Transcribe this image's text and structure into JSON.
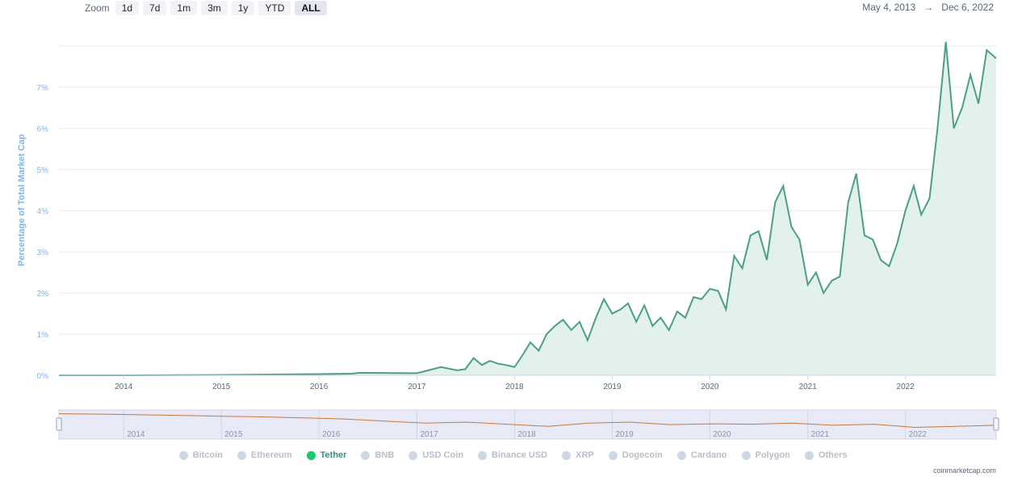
{
  "zoom": {
    "label": "Zoom",
    "buttons": [
      "1d",
      "7d",
      "1m",
      "3m",
      "1y",
      "YTD",
      "ALL"
    ],
    "active": "ALL"
  },
  "range": {
    "from": "May 4, 2013",
    "arrow": "→",
    "to": "Dec 6, 2022"
  },
  "credit": "coinmarketcap.com",
  "colors": {
    "line": "#4d9e86",
    "fill": "#e2f1eb",
    "axis_text": "#7cb5ec",
    "navigator_line": "#c5793d"
  },
  "legend": [
    {
      "label": "Bitcoin",
      "active": false
    },
    {
      "label": "Ethereum",
      "active": false
    },
    {
      "label": "Tether",
      "active": true
    },
    {
      "label": "BNB",
      "active": false
    },
    {
      "label": "USD Coin",
      "active": false
    },
    {
      "label": "Binance USD",
      "active": false
    },
    {
      "label": "XRP",
      "active": false
    },
    {
      "label": "Dogecoin",
      "active": false
    },
    {
      "label": "Cardano",
      "active": false
    },
    {
      "label": "Polygon",
      "active": false
    },
    {
      "label": "Others",
      "active": false
    }
  ],
  "chart_data": {
    "type": "area",
    "series": [
      {
        "name": "Tether",
        "points": [
          [
            "2013-05-04",
            0
          ],
          [
            "2014-01-01",
            0
          ],
          [
            "2015-01-01",
            0.01
          ],
          [
            "2016-01-01",
            0.03
          ],
          [
            "2016-05-01",
            0.04
          ],
          [
            "2016-06-01",
            0.06
          ],
          [
            "2017-01-01",
            0.05
          ],
          [
            "2017-02-01",
            0.1
          ],
          [
            "2017-04-01",
            0.2
          ],
          [
            "2017-06-01",
            0.12
          ],
          [
            "2017-07-01",
            0.15
          ],
          [
            "2017-08-01",
            0.42
          ],
          [
            "2017-09-01",
            0.25
          ],
          [
            "2017-10-01",
            0.35
          ],
          [
            "2017-11-01",
            0.28
          ],
          [
            "2017-12-01",
            0.25
          ],
          [
            "2018-01-01",
            0.2
          ],
          [
            "2018-02-01",
            0.5
          ],
          [
            "2018-03-01",
            0.8
          ],
          [
            "2018-04-01",
            0.6
          ],
          [
            "2018-05-01",
            1.0
          ],
          [
            "2018-06-01",
            1.2
          ],
          [
            "2018-07-01",
            1.35
          ],
          [
            "2018-08-01",
            1.1
          ],
          [
            "2018-09-01",
            1.3
          ],
          [
            "2018-10-01",
            0.85
          ],
          [
            "2018-11-01",
            1.4
          ],
          [
            "2018-12-01",
            1.85
          ],
          [
            "2019-01-01",
            1.5
          ],
          [
            "2019-02-01",
            1.6
          ],
          [
            "2019-03-01",
            1.75
          ],
          [
            "2019-04-01",
            1.3
          ],
          [
            "2019-05-01",
            1.7
          ],
          [
            "2019-06-01",
            1.2
          ],
          [
            "2019-07-01",
            1.4
          ],
          [
            "2019-08-01",
            1.1
          ],
          [
            "2019-09-01",
            1.55
          ],
          [
            "2019-10-01",
            1.4
          ],
          [
            "2019-11-01",
            1.9
          ],
          [
            "2019-12-01",
            1.85
          ],
          [
            "2020-01-01",
            2.1
          ],
          [
            "2020-02-01",
            2.05
          ],
          [
            "2020-03-01",
            1.6
          ],
          [
            "2020-04-01",
            2.9
          ],
          [
            "2020-05-01",
            2.6
          ],
          [
            "2020-06-01",
            3.4
          ],
          [
            "2020-07-01",
            3.5
          ],
          [
            "2020-08-01",
            2.8
          ],
          [
            "2020-09-01",
            4.2
          ],
          [
            "2020-10-01",
            4.6
          ],
          [
            "2020-11-01",
            3.6
          ],
          [
            "2020-12-01",
            3.3
          ],
          [
            "2021-01-01",
            2.2
          ],
          [
            "2021-02-01",
            2.5
          ],
          [
            "2021-03-01",
            2.0
          ],
          [
            "2021-04-01",
            2.3
          ],
          [
            "2021-05-01",
            2.4
          ],
          [
            "2021-06-01",
            4.2
          ],
          [
            "2021-07-01",
            4.9
          ],
          [
            "2021-08-01",
            3.4
          ],
          [
            "2021-09-01",
            3.3
          ],
          [
            "2021-10-01",
            2.8
          ],
          [
            "2021-11-01",
            2.65
          ],
          [
            "2021-12-01",
            3.2
          ],
          [
            "2022-01-01",
            4.0
          ],
          [
            "2022-02-01",
            4.6
          ],
          [
            "2022-03-01",
            3.9
          ],
          [
            "2022-04-01",
            4.3
          ],
          [
            "2022-05-01",
            6.0
          ],
          [
            "2022-06-01",
            8.1
          ],
          [
            "2022-07-01",
            6.0
          ],
          [
            "2022-08-01",
            6.5
          ],
          [
            "2022-09-01",
            7.3
          ],
          [
            "2022-10-01",
            6.6
          ],
          [
            "2022-11-01",
            7.9
          ],
          [
            "2022-12-06",
            7.7
          ]
        ]
      }
    ],
    "y_ticks": [
      "0%",
      "1%",
      "2%",
      "3%",
      "4%",
      "5%",
      "6%",
      "7%"
    ],
    "y_axis_label": "Percentage of Total Market Cap",
    "x_ticks": [
      "2014",
      "2015",
      "2016",
      "2017",
      "2018",
      "2019",
      "2020",
      "2021",
      "2022"
    ],
    "ylim": [
      0,
      8
    ],
    "xlim": [
      "2013-05-04",
      "2022-12-06"
    ],
    "grid": true,
    "legend_position": "bottom"
  }
}
